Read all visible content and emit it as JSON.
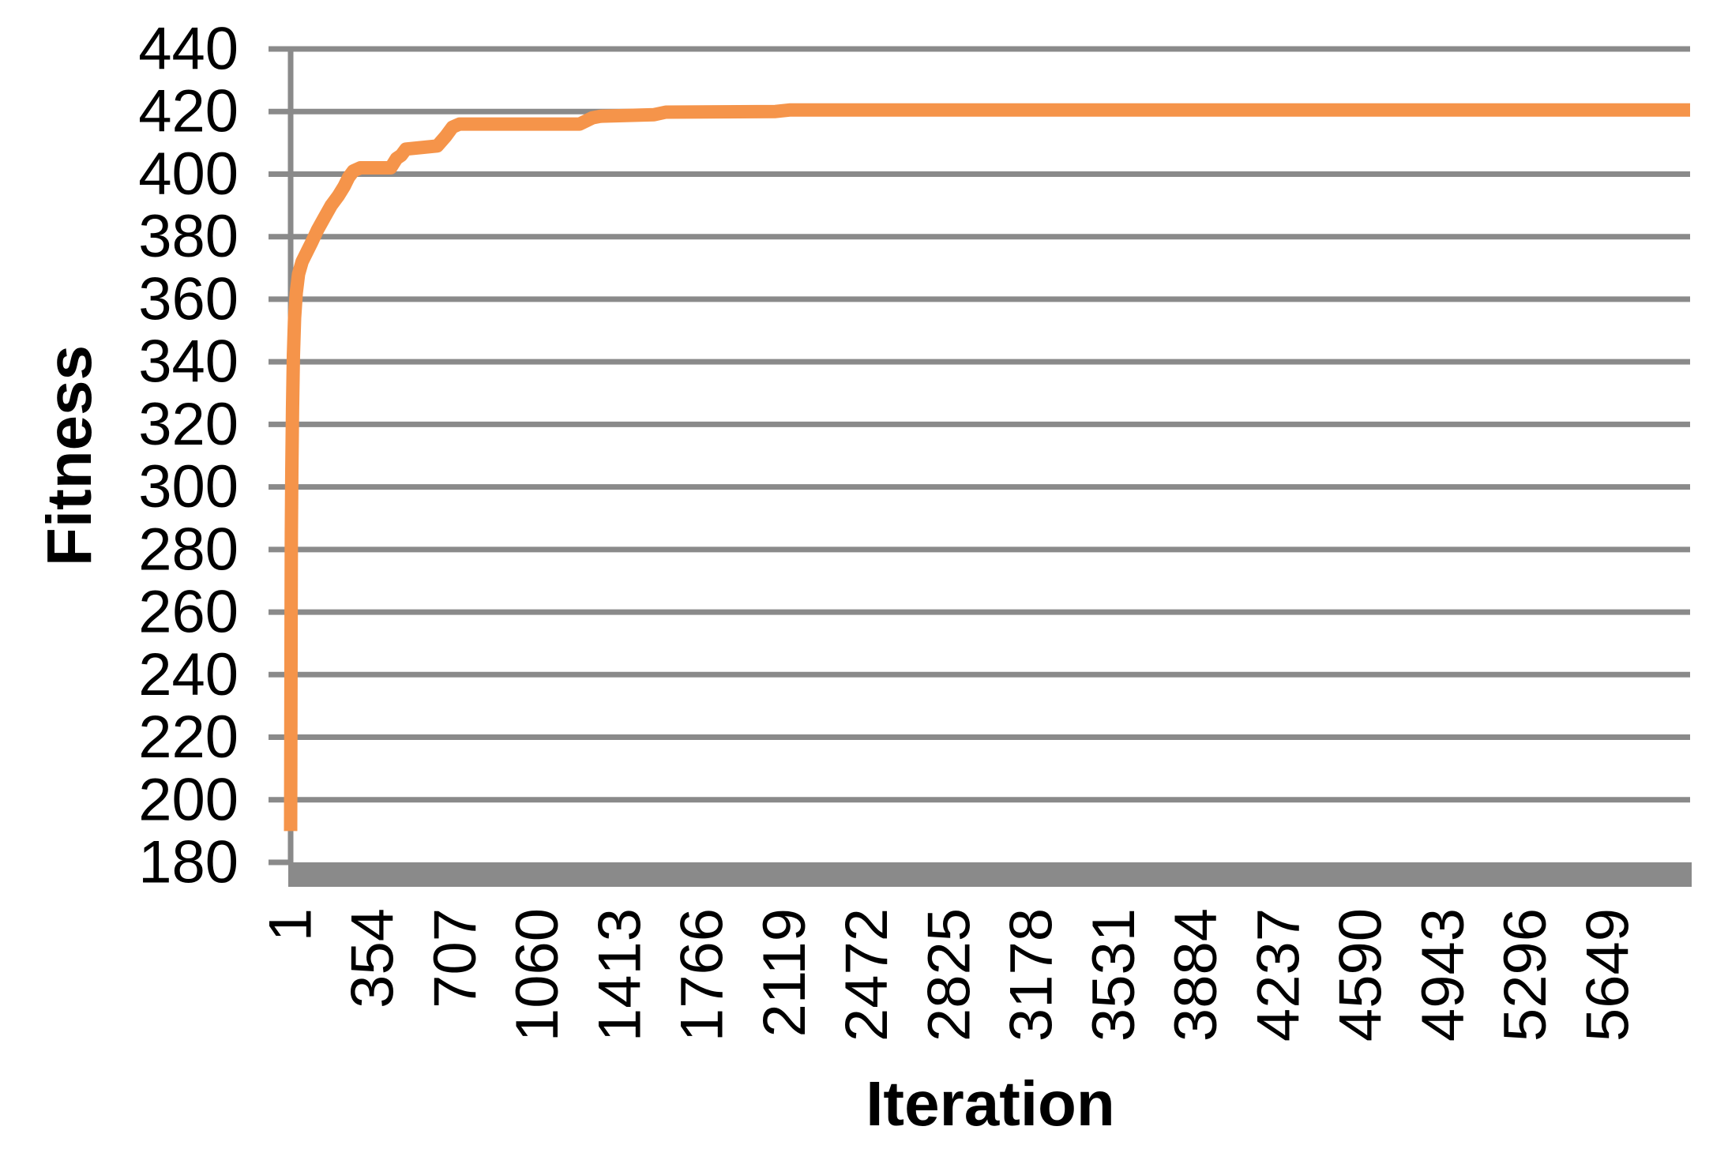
{
  "figure": {
    "background": "#FFFFFF"
  },
  "chart_data": {
    "type": "line",
    "title": "",
    "xlabel": "Iteration",
    "ylabel": "Fitness",
    "x_tick_labels": [
      1,
      354,
      707,
      1060,
      1413,
      1766,
      2119,
      2472,
      2825,
      3178,
      3531,
      3884,
      4237,
      4590,
      4943,
      5296,
      5649
    ],
    "y_ticks": [
      180,
      200,
      220,
      240,
      260,
      280,
      300,
      320,
      340,
      360,
      380,
      400,
      420,
      440
    ],
    "xlim": [
      1,
      6002
    ],
    "ylim": [
      180,
      440
    ],
    "grid": "horizontal",
    "legend": "none",
    "series": [
      {
        "name": "Fitness",
        "color": "#F5944A",
        "points": [
          [
            1,
            190
          ],
          [
            2,
            225
          ],
          [
            3,
            258
          ],
          [
            4,
            285
          ],
          [
            6,
            305
          ],
          [
            9,
            325
          ],
          [
            13,
            342
          ],
          [
            18,
            354
          ],
          [
            25,
            362
          ],
          [
            35,
            368
          ],
          [
            50,
            372
          ],
          [
            70,
            375
          ],
          [
            90,
            378
          ],
          [
            115,
            382
          ],
          [
            145,
            386
          ],
          [
            175,
            390
          ],
          [
            205,
            393
          ],
          [
            230,
            396
          ],
          [
            250,
            399
          ],
          [
            270,
            401
          ],
          [
            300,
            402
          ],
          [
            430,
            402
          ],
          [
            455,
            405
          ],
          [
            475,
            406
          ],
          [
            495,
            408
          ],
          [
            630,
            409
          ],
          [
            665,
            412
          ],
          [
            695,
            415
          ],
          [
            725,
            416
          ],
          [
            1240,
            416
          ],
          [
            1295,
            418
          ],
          [
            1330,
            418.5
          ],
          [
            1560,
            419
          ],
          [
            1610,
            419.8
          ],
          [
            2080,
            420
          ],
          [
            2140,
            420.5
          ],
          [
            6002,
            420.5
          ]
        ]
      }
    ],
    "colors": {
      "line": "#F5944A",
      "grid": "#8A8A8A",
      "axis": "#8A8A8A",
      "text": "#000000",
      "background": "#FFFFFF"
    }
  }
}
